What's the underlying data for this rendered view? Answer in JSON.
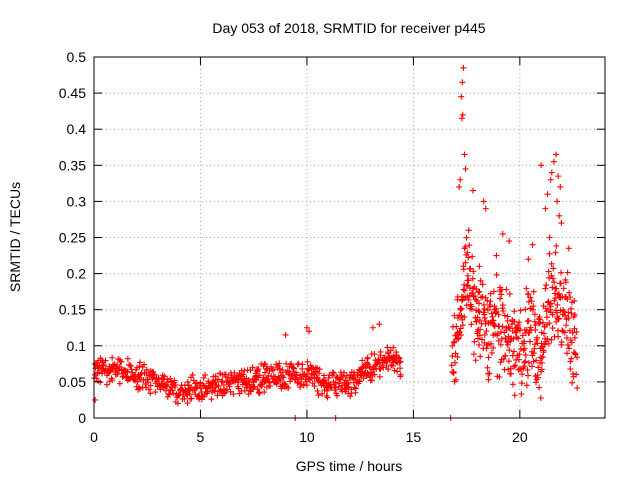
{
  "chart_data": {
    "type": "scatter",
    "title": "Day 053 of 2018, SRMTID for receiver p445",
    "xlabel": "GPS time / hours",
    "ylabel": "SRMTID / TECUs",
    "xlim": [
      0,
      24
    ],
    "ylim": [
      0,
      0.5
    ],
    "xticks": [
      0,
      5,
      10,
      15,
      20
    ],
    "xtick_labels": [
      "0",
      "5",
      "10",
      "15",
      "20"
    ],
    "yticks": [
      0,
      0.05,
      0.1,
      0.15,
      0.2,
      0.25,
      0.3,
      0.35,
      0.4,
      0.45,
      0.5
    ],
    "ytick_labels": [
      "0",
      "0.05",
      "0.1",
      "0.15",
      "0.2",
      "0.25",
      "0.3",
      "0.35",
      "0.4",
      "0.45",
      "0.5"
    ],
    "grid": true,
    "marker": "+",
    "color": "#ff0000",
    "segments": [
      {
        "x_start": 0.0,
        "x_end": 14.4,
        "step": 0.03,
        "base": [
          [
            0,
            0.07
          ],
          [
            1,
            0.065
          ],
          [
            2,
            0.06
          ],
          [
            3,
            0.05
          ],
          [
            4,
            0.035
          ],
          [
            5,
            0.04
          ],
          [
            6,
            0.045
          ],
          [
            7,
            0.05
          ],
          [
            8,
            0.055
          ],
          [
            9,
            0.06
          ],
          [
            10,
            0.06
          ],
          [
            11,
            0.045
          ],
          [
            12,
            0.05
          ],
          [
            13,
            0.07
          ],
          [
            14,
            0.085
          ],
          [
            14.4,
            0.07
          ]
        ],
        "spread": 0.022
      },
      {
        "x_start": 16.8,
        "x_end": 22.7,
        "step": 0.02,
        "base": [
          [
            16.8,
            0.07
          ],
          [
            17.2,
            0.15
          ],
          [
            17.5,
            0.2
          ],
          [
            18.0,
            0.14
          ],
          [
            18.5,
            0.12
          ],
          [
            19.0,
            0.13
          ],
          [
            19.5,
            0.11
          ],
          [
            20.0,
            0.1
          ],
          [
            20.5,
            0.12
          ],
          [
            21.0,
            0.09
          ],
          [
            21.5,
            0.18
          ],
          [
            22.0,
            0.16
          ],
          [
            22.5,
            0.1
          ],
          [
            22.7,
            0.07
          ]
        ],
        "spread": 0.075
      }
    ],
    "extra_points": [
      {
        "x": 17.35,
        "y": 0.485
      },
      {
        "x": 17.3,
        "y": 0.465
      },
      {
        "x": 17.25,
        "y": 0.445
      },
      {
        "x": 17.32,
        "y": 0.42
      },
      {
        "x": 17.28,
        "y": 0.415
      },
      {
        "x": 17.4,
        "y": 0.365
      },
      {
        "x": 17.45,
        "y": 0.345
      },
      {
        "x": 17.2,
        "y": 0.33
      },
      {
        "x": 17.15,
        "y": 0.32
      },
      {
        "x": 17.8,
        "y": 0.315
      },
      {
        "x": 18.3,
        "y": 0.3
      },
      {
        "x": 18.4,
        "y": 0.29
      },
      {
        "x": 21.7,
        "y": 0.365
      },
      {
        "x": 21.6,
        "y": 0.355
      },
      {
        "x": 21.0,
        "y": 0.35
      },
      {
        "x": 21.5,
        "y": 0.34
      },
      {
        "x": 21.8,
        "y": 0.335
      },
      {
        "x": 21.45,
        "y": 0.33
      },
      {
        "x": 21.9,
        "y": 0.32
      },
      {
        "x": 21.3,
        "y": 0.31
      },
      {
        "x": 21.75,
        "y": 0.3
      },
      {
        "x": 21.2,
        "y": 0.29
      },
      {
        "x": 21.85,
        "y": 0.28
      },
      {
        "x": 21.95,
        "y": 0.27
      },
      {
        "x": 19.2,
        "y": 0.255
      },
      {
        "x": 19.5,
        "y": 0.245
      },
      {
        "x": 20.6,
        "y": 0.24
      },
      {
        "x": 21.4,
        "y": 0.25
      },
      {
        "x": 22.3,
        "y": 0.235
      },
      {
        "x": 18.9,
        "y": 0.225
      },
      {
        "x": 9.0,
        "y": 0.115
      },
      {
        "x": 10.0,
        "y": 0.125
      },
      {
        "x": 10.1,
        "y": 0.12
      },
      {
        "x": 13.4,
        "y": 0.13
      },
      {
        "x": 13.1,
        "y": 0.125
      },
      {
        "x": 0.05,
        "y": 0.025
      },
      {
        "x": 9.45,
        "y": 0.0
      },
      {
        "x": 11.35,
        "y": 0.0
      },
      {
        "x": 16.75,
        "y": 0.0
      },
      {
        "x": 18.1,
        "y": 0.21
      },
      {
        "x": 17.6,
        "y": 0.26
      },
      {
        "x": 20.4,
        "y": 0.22
      }
    ]
  }
}
